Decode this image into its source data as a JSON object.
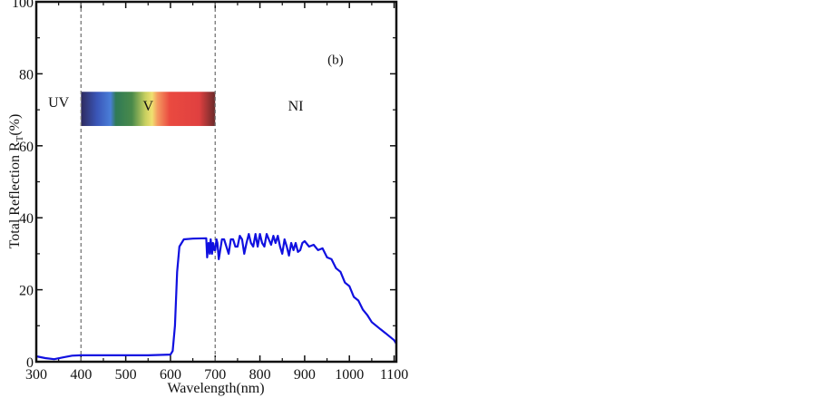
{
  "chart_data": {
    "type": "line",
    "title": "",
    "panel_label": "(b)",
    "xlabel": "Wavelength(nm)",
    "ylabel": "Total Reflection R",
    "ylabel_sub": "T",
    "ylabel_unit": "(%)",
    "xlim": [
      300,
      1105
    ],
    "ylim": [
      0,
      100
    ],
    "xticks": [
      300,
      400,
      500,
      600,
      700,
      800,
      900,
      1000,
      1100
    ],
    "yticks": [
      0,
      20,
      40,
      60,
      80,
      100
    ],
    "grid": false,
    "region_lines": [
      400,
      700
    ],
    "regions": [
      {
        "label": "UV",
        "x": 350,
        "y": 72
      },
      {
        "label": "V",
        "x": 550,
        "y": 71
      },
      {
        "label": "NI",
        "x": 880,
        "y": 71
      }
    ],
    "spectrum_band": {
      "x": [
        400,
        700
      ],
      "y": [
        65.5,
        75
      ]
    },
    "panel_label_pos": {
      "x": 969,
      "y": 84
    },
    "series": [
      {
        "name": "Total Reflection",
        "color": "#1010e0",
        "x": [
          300,
          320,
          340,
          360,
          380,
          400,
          450,
          500,
          550,
          600,
          605,
          610,
          615,
          620,
          630,
          650,
          680,
          682,
          685,
          688,
          690,
          693,
          695,
          698,
          700,
          703,
          705,
          708,
          710,
          715,
          720,
          725,
          730,
          735,
          740,
          745,
          750,
          755,
          760,
          765,
          770,
          775,
          780,
          785,
          790,
          795,
          800,
          805,
          810,
          815,
          820,
          825,
          830,
          835,
          840,
          845,
          850,
          855,
          860,
          865,
          870,
          875,
          880,
          885,
          890,
          895,
          900,
          910,
          920,
          930,
          940,
          950,
          960,
          970,
          980,
          990,
          1000,
          1010,
          1020,
          1030,
          1040,
          1050,
          1060,
          1070,
          1080,
          1090,
          1100,
          1105
        ],
        "y": [
          1.5,
          1.0,
          0.7,
          1.2,
          1.7,
          1.8,
          1.8,
          1.8,
          1.8,
          2.0,
          3,
          10,
          25,
          32,
          34,
          34.2,
          34.3,
          29,
          33,
          30,
          34,
          30,
          33,
          31,
          31,
          34,
          33,
          28.5,
          30,
          34,
          34,
          32,
          30,
          34,
          34,
          32,
          32,
          35,
          34,
          30,
          33,
          35.5,
          33,
          32,
          35.5,
          32,
          35.5,
          33,
          32,
          35.5,
          34,
          32.5,
          35,
          33,
          35,
          32,
          30,
          34,
          32,
          29.5,
          33,
          31,
          33,
          30.5,
          31,
          33,
          33.5,
          32,
          32.5,
          31,
          31.5,
          29,
          28.5,
          26,
          25,
          22,
          21,
          18,
          17,
          14.5,
          13,
          11,
          10,
          9,
          8,
          7,
          6,
          5
        ]
      }
    ]
  }
}
